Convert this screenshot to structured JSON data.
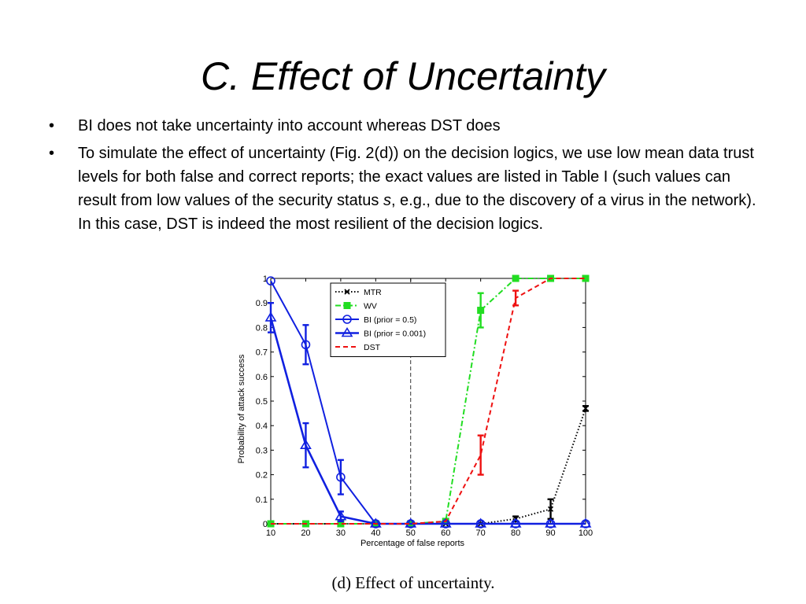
{
  "slide": {
    "title": "C. Effect of Uncertainty",
    "bullets": [
      {
        "text": "BI does not take uncertainty into account whereas DST does"
      },
      {
        "text_before": "To simulate the effect of uncertainty (Fig. 2(d)) on the decision logics, we use low mean data trust levels for both false and correct reports; the exact values are listed in Table I (such values can result from low values of the security status ",
        "text_italic": "s",
        "text_after": ", e.g., due to the discovery of a virus in the network). In this case, DST is indeed the most resilient of the decision logics."
      }
    ],
    "bullet_glyph": "•"
  },
  "chart_data": {
    "type": "line",
    "title": "",
    "caption": "(d)  Effect  of  uncertainty.",
    "xlabel": "Percentage of false reports",
    "ylabel": "Probability of attack success",
    "x": [
      10,
      20,
      30,
      40,
      50,
      60,
      70,
      80,
      90,
      100
    ],
    "xlim": [
      10,
      100
    ],
    "ylim": [
      0,
      1
    ],
    "xticks": [
      "10",
      "20",
      "30",
      "40",
      "50",
      "60",
      "70",
      "80",
      "90",
      "100"
    ],
    "yticks": [
      "0",
      "0.1",
      "0.2",
      "0.3",
      "0.4",
      "0.5",
      "0.6",
      "0.7",
      "0.8",
      "0.9",
      "1"
    ],
    "vline_x": 50,
    "legend_position": "top-center",
    "series": [
      {
        "name": "MTR",
        "color": "#000000",
        "style": "dotted",
        "marker": "x",
        "values": [
          0,
          0,
          0,
          0,
          0,
          0,
          0,
          0.02,
          0.06,
          0.47
        ],
        "err": [
          0,
          0,
          0,
          0,
          0.01,
          0,
          0,
          0.01,
          0.04,
          0.01
        ]
      },
      {
        "name": "WV",
        "color": "#22dd22",
        "style": "dashdot",
        "marker": "square",
        "values": [
          0,
          0,
          0,
          0,
          0,
          0.01,
          0.87,
          1.0,
          1.0,
          1.0
        ],
        "err": [
          0,
          0,
          0,
          0,
          0,
          0,
          0.07,
          0,
          0,
          0
        ]
      },
      {
        "name": "BI (prior = 0.5)",
        "color": "#1020e0",
        "style": "solid",
        "marker": "circle",
        "values": [
          0.99,
          0.73,
          0.19,
          0,
          0,
          0,
          0,
          0,
          0,
          0
        ],
        "err": [
          0,
          0.08,
          0.07,
          0,
          0,
          0,
          0,
          0,
          0,
          0
        ]
      },
      {
        "name": "BI (prior = 0.001)",
        "color": "#1020e0",
        "style": "solid-thick",
        "marker": "triangle",
        "values": [
          0.84,
          0.32,
          0.03,
          0,
          0,
          0,
          0,
          0,
          0,
          0
        ],
        "err": [
          0.06,
          0.09,
          0.02,
          0,
          0,
          0,
          0,
          0,
          0,
          0
        ]
      },
      {
        "name": "DST",
        "color": "#ee1111",
        "style": "dashed",
        "marker": "none",
        "values": [
          0,
          0,
          0,
          0,
          0,
          0.01,
          0.28,
          0.92,
          1.0,
          1.0
        ],
        "err": [
          0,
          0,
          0,
          0,
          0,
          0,
          0.08,
          0.03,
          0,
          0
        ]
      }
    ]
  }
}
